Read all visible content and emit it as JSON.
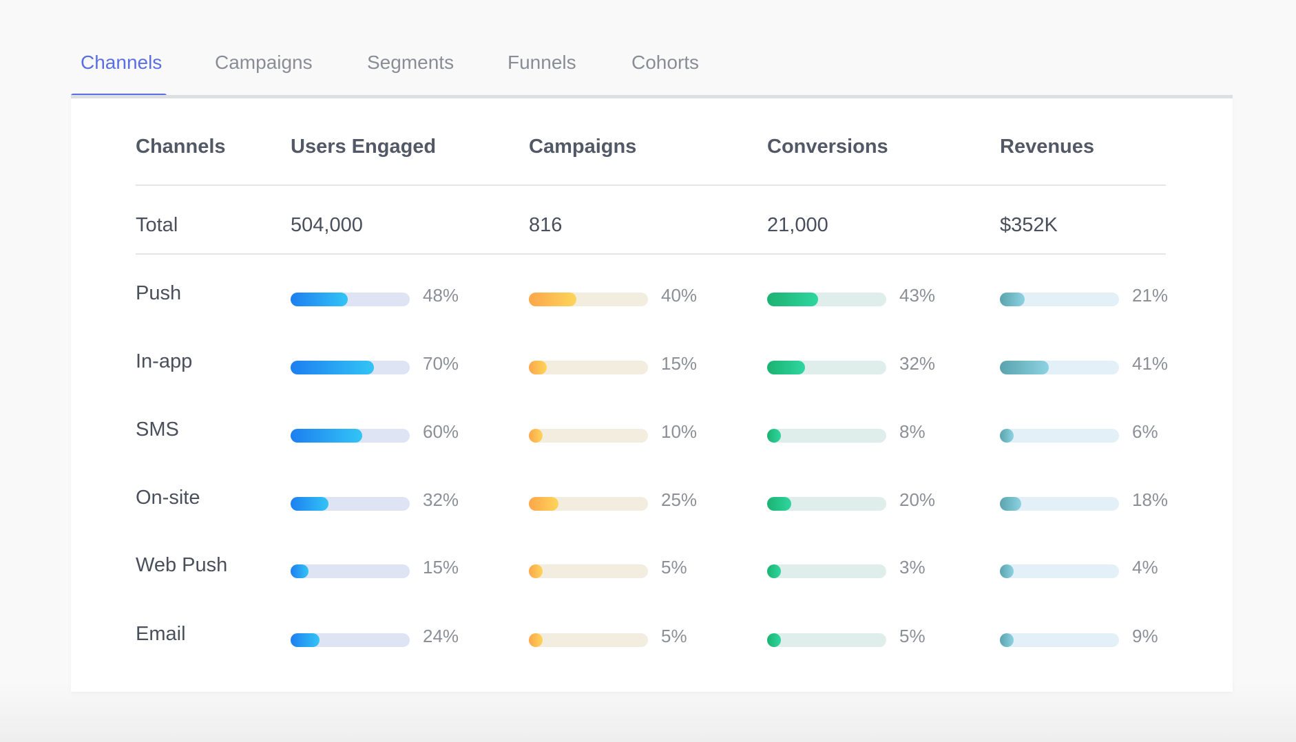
{
  "tabs": [
    {
      "label": "Channels",
      "active": true
    },
    {
      "label": "Campaigns",
      "active": false
    },
    {
      "label": "Segments",
      "active": false
    },
    {
      "label": "Funnels",
      "active": false
    },
    {
      "label": "Cohorts",
      "active": false
    }
  ],
  "table": {
    "headers": [
      "Channels",
      "Users Engaged",
      "Campaigns",
      "Conversions",
      "Revenues"
    ],
    "total": {
      "label": "Total",
      "values": [
        "504,000",
        "816",
        "21,000",
        "$352K"
      ]
    },
    "rows": [
      {
        "label": "Push",
        "values": [
          48,
          40,
          43,
          21
        ],
        "texts": [
          "48%",
          "40%",
          "43%",
          "21%"
        ]
      },
      {
        "label": "In-app",
        "values": [
          70,
          15,
          32,
          41
        ],
        "texts": [
          "70%",
          "15%",
          "32%",
          "41%"
        ]
      },
      {
        "label": "SMS",
        "values": [
          60,
          10,
          8,
          6
        ],
        "texts": [
          "60%",
          "10%",
          "8%",
          "6%"
        ]
      },
      {
        "label": "On-site",
        "values": [
          32,
          25,
          20,
          18
        ],
        "texts": [
          "32%",
          "25%",
          "20%",
          "18%"
        ]
      },
      {
        "label": "Web Push",
        "values": [
          15,
          5,
          3,
          4
        ],
        "texts": [
          "15%",
          "5%",
          "3%",
          "4%"
        ]
      },
      {
        "label": "Email",
        "values": [
          24,
          5,
          5,
          9
        ],
        "texts": [
          "24%",
          "5%",
          "5%",
          "9%"
        ]
      }
    ]
  },
  "colors": {
    "accent": "#5a6fe6",
    "users": {
      "track": "#dfe4f5",
      "from": "#1d7ff0",
      "to": "#33c4f5"
    },
    "campaigns": {
      "track": "#f3ede0",
      "from": "#fca64a",
      "to": "#fdd55a"
    },
    "conversions": {
      "track": "#dfeeea",
      "from": "#1bb271",
      "to": "#2fd6a0"
    },
    "revenues": {
      "track": "#e3f0f8",
      "from": "#5aa3ad",
      "to": "#8dd2e2"
    }
  }
}
